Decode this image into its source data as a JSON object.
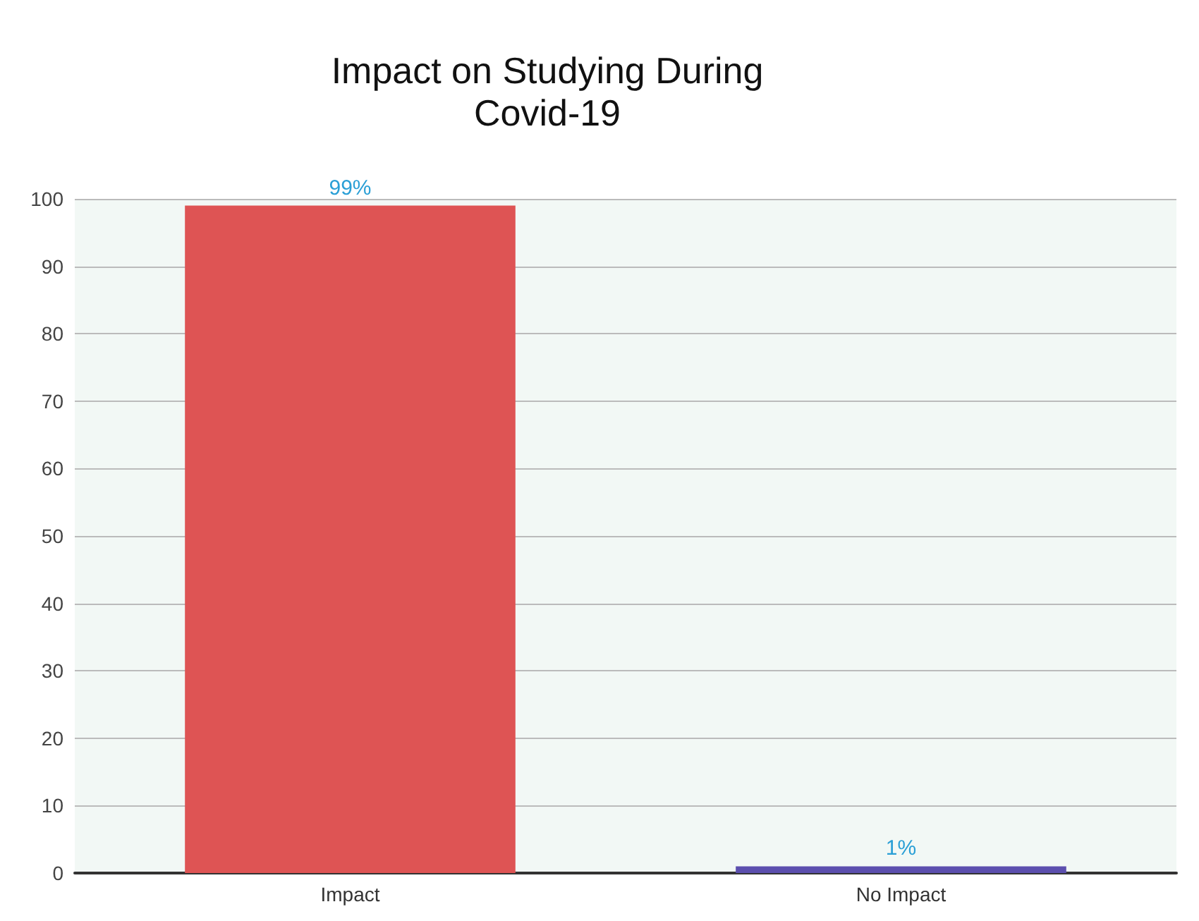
{
  "chart_data": {
    "type": "bar",
    "title": "Impact on Studying During\nCovid-19",
    "categories": [
      "Impact",
      "No Impact"
    ],
    "values": [
      99,
      1
    ],
    "colors": [
      "#de5454",
      "#5c4fae"
    ],
    "value_labels": [
      "99%",
      "1%"
    ],
    "ylim": [
      0,
      100
    ],
    "yticks": [
      0,
      10,
      20,
      30,
      40,
      50,
      60,
      70,
      80,
      90,
      100
    ],
    "grid": "y"
  }
}
